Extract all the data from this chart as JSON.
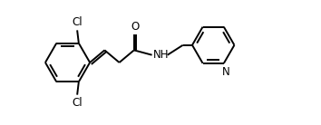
{
  "background": "#ffffff",
  "line_color": "#000000",
  "line_width": 1.4,
  "font_size": 8.5,
  "fig_width": 3.54,
  "fig_height": 1.38,
  "dpi": 100,
  "xlim": [
    0,
    9.5
  ],
  "ylim": [
    0.2,
    4.2
  ]
}
